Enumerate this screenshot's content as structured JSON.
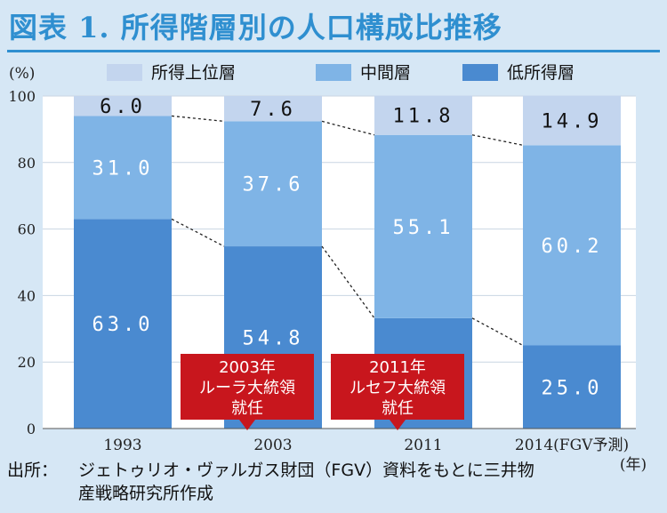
{
  "title": "図表 1. 所得階層別の人口構成比推移",
  "source": {
    "label": "出所：",
    "line1": "ジェトゥリオ・ヴァルガス財団（FGV）資料をもとに三井物",
    "line2": "産戦略研究所作成"
  },
  "colors": {
    "upper": "#c3d5ee",
    "middle": "#7fb4e6",
    "lower": "#4a8ad0",
    "callout": "#c8161d",
    "title": "#2f8fd0"
  },
  "chart_data": {
    "type": "bar",
    "stacked": true,
    "ylabel": "(%)",
    "xunit": "(年)",
    "ylim": [
      0,
      100
    ],
    "yticks": [
      0,
      20,
      40,
      60,
      80,
      100
    ],
    "grid": true,
    "legend_position": "top",
    "categories": [
      "1993",
      "2003",
      "2011",
      "2014(FGV予測)"
    ],
    "series": [
      {
        "name": "低所得層",
        "values": [
          63.0,
          54.8,
          33.2,
          25.0
        ],
        "labels": [
          "63.0",
          "54.8",
          "33.2",
          "25.0"
        ]
      },
      {
        "name": "中間層",
        "values": [
          31.0,
          37.6,
          55.1,
          60.2
        ],
        "labels": [
          "31.0",
          "37.6",
          "55.1",
          "60.2"
        ]
      },
      {
        "name": "所得上位層",
        "values": [
          6.0,
          7.6,
          11.8,
          14.9
        ],
        "labels": [
          "6.0",
          "7.6",
          "11.8",
          "14.9"
        ]
      }
    ],
    "legend_order": [
      "所得上位層",
      "中間層",
      "低所得層"
    ],
    "annotations": [
      {
        "category": "2003",
        "lines": [
          "2003年",
          "ルーラ大統領",
          "就任"
        ]
      },
      {
        "category": "2011",
        "lines": [
          "2011年",
          "ルセフ大統領",
          "就任"
        ]
      }
    ]
  }
}
